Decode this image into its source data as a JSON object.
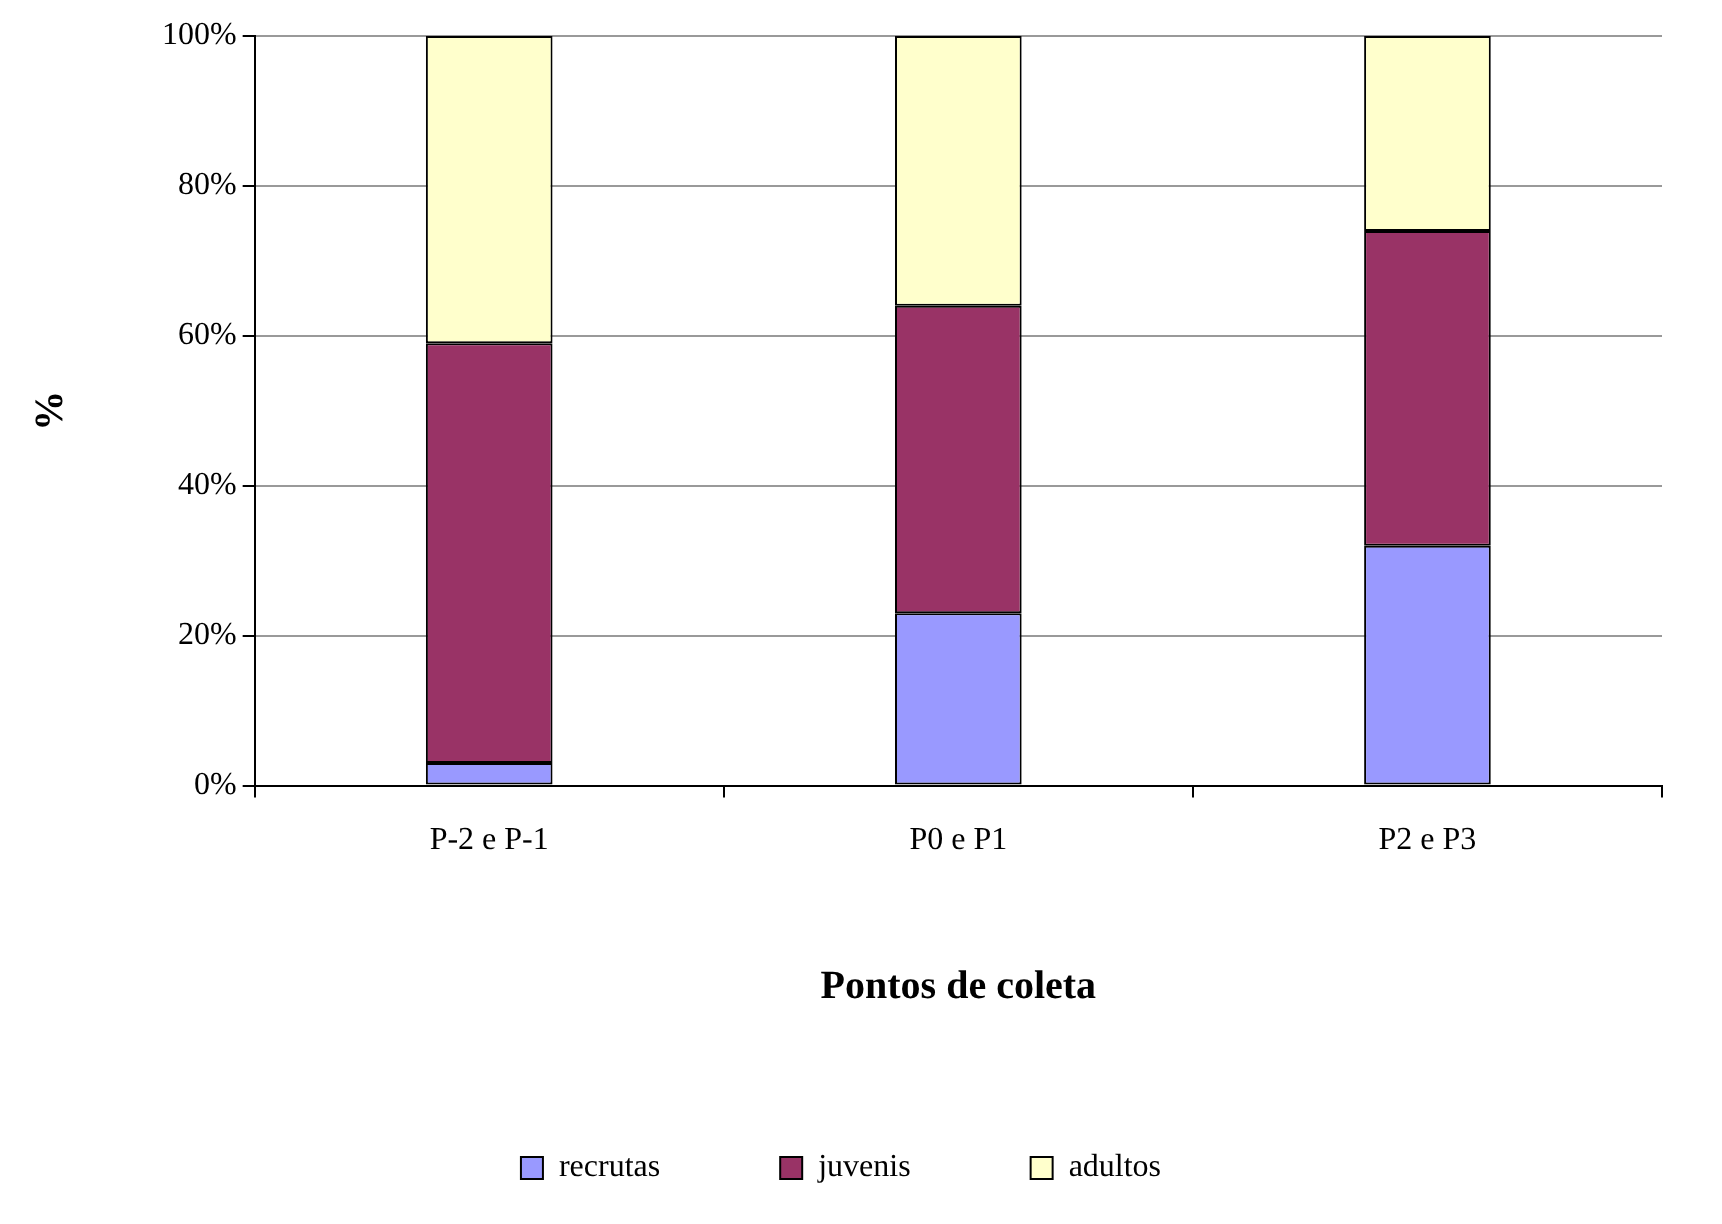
{
  "chart_data": {
    "type": "bar",
    "stacked": true,
    "xlabel": "Pontos de coleta",
    "ylabel": "%",
    "categories": [
      "P-2 e P-1",
      "P0 e P1",
      "P2 e P3"
    ],
    "series": [
      {
        "name": "recrutas",
        "color": "#9999ff",
        "values": [
          3,
          23,
          32
        ]
      },
      {
        "name": "juvenis",
        "color": "#993366",
        "values": [
          56,
          41,
          42
        ]
      },
      {
        "name": "adultos",
        "color": "#ffffcc",
        "values": [
          41,
          36,
          26
        ]
      }
    ],
    "ylim": [
      0,
      100
    ],
    "yticks": [
      {
        "value": 0,
        "label": "0%"
      },
      {
        "value": 20,
        "label": "20%"
      },
      {
        "value": 40,
        "label": "40%"
      },
      {
        "value": 60,
        "label": "60%"
      },
      {
        "value": 80,
        "label": "80%"
      },
      {
        "value": 100,
        "label": "100%"
      }
    ],
    "grid": "y",
    "legend": "bottom"
  }
}
